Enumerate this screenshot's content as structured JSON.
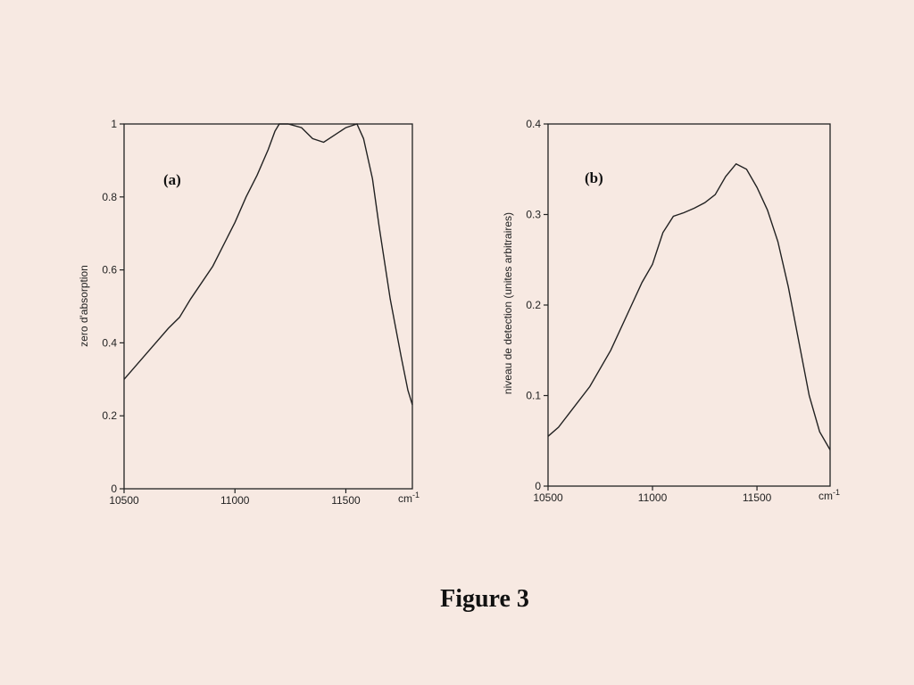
{
  "caption": "Figure 3",
  "chart_data": [
    {
      "type": "line",
      "panel_label": "(a)",
      "xlabel": "",
      "ylabel": "zero d'absorption",
      "x_unit": "cm",
      "x_unit_exp": "-1",
      "xlim": [
        10500,
        11800
      ],
      "ylim": [
        0,
        1
      ],
      "grid": false,
      "xticks": [
        "10500",
        "11000",
        "11500"
      ],
      "yticks": [
        "0",
        "0.2",
        "0.4",
        "0.6",
        "0.8",
        "1"
      ],
      "series": [
        {
          "x": [
            10500,
            10600,
            10700,
            10750,
            10800,
            10900,
            11000,
            11050,
            11100,
            11150,
            11180,
            11200,
            11240,
            11300,
            11350,
            11400,
            11450,
            11500,
            11550,
            11580,
            11620,
            11650,
            11700,
            11750,
            11780,
            11800
          ],
          "y": [
            0.3,
            0.37,
            0.44,
            0.47,
            0.52,
            0.61,
            0.73,
            0.8,
            0.86,
            0.93,
            0.98,
            1.0,
            1.0,
            0.99,
            0.96,
            0.95,
            0.97,
            0.99,
            1.0,
            0.96,
            0.85,
            0.72,
            0.52,
            0.36,
            0.27,
            0.23
          ]
        }
      ]
    },
    {
      "type": "line",
      "panel_label": "(b)",
      "xlabel": "",
      "ylabel": "niveau de detection  (unites arbitraires)",
      "x_unit": "cm",
      "x_unit_exp": "-1",
      "xlim": [
        10500,
        11850
      ],
      "ylim": [
        0,
        0.4
      ],
      "grid": false,
      "xticks": [
        "10500",
        "11000",
        "11500"
      ],
      "yticks": [
        "0",
        "0.1",
        "0.2",
        "0.3",
        "0.4"
      ],
      "series": [
        {
          "x": [
            10500,
            10550,
            10600,
            10700,
            10800,
            10900,
            10950,
            11000,
            11050,
            11100,
            11150,
            11200,
            11250,
            11300,
            11350,
            11400,
            11450,
            11500,
            11550,
            11600,
            11650,
            11700,
            11750,
            11800,
            11850
          ],
          "y": [
            0.055,
            0.065,
            0.08,
            0.11,
            0.15,
            0.2,
            0.225,
            0.245,
            0.28,
            0.298,
            0.302,
            0.307,
            0.313,
            0.322,
            0.342,
            0.356,
            0.35,
            0.33,
            0.305,
            0.27,
            0.22,
            0.16,
            0.1,
            0.06,
            0.04
          ]
        }
      ]
    }
  ]
}
